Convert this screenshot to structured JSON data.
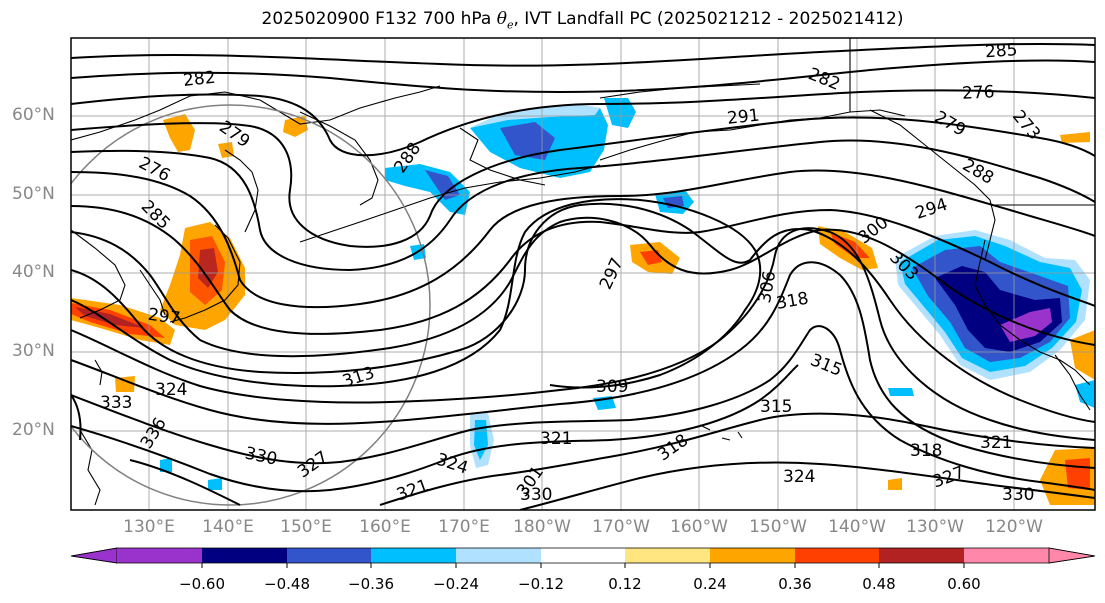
{
  "title": {
    "prefix": "2025020900 F132 700 hPa ",
    "theta_symbol": "θ",
    "theta_sub": "e",
    "suffix": ", IVT Landfall PC (2025021212 - 2025021412)"
  },
  "axes": {
    "lat_labels": [
      "60°N",
      "50°N",
      "40°N",
      "30°N",
      "20°N"
    ],
    "lon_labels": [
      "130°E",
      "140°E",
      "150°E",
      "160°E",
      "170°E",
      "180°W",
      "170°W",
      "160°W",
      "150°W",
      "140°W",
      "130°W",
      "120°W"
    ]
  },
  "contour_labels": [
    "282",
    "279",
    "276",
    "285",
    "288",
    "285",
    "282",
    "291",
    "276",
    "279",
    "273",
    "288",
    "294",
    "300",
    "303",
    "297",
    "306",
    "318",
    "315",
    "309",
    "315",
    "333",
    "324",
    "336",
    "330",
    "327",
    "324",
    "321",
    "321",
    "318",
    "321",
    "318",
    "327",
    "324",
    "330",
    "301",
    "330",
    "297",
    "313"
  ],
  "colorbar": {
    "colors": [
      "#9933cc",
      "#000080",
      "#3355cc",
      "#00bfff",
      "#b0e2ff",
      "#ffffff",
      "#ffe680",
      "#ffa500",
      "#ff4000",
      "#b22222",
      "#ff88aa"
    ],
    "tick_labels": [
      "−0.60",
      "−0.48",
      "−0.36",
      "−0.24",
      "−0.12",
      "0.12",
      "0.24",
      "0.36",
      "0.48",
      "0.60"
    ]
  },
  "colors": {
    "contour": "#000000",
    "grid": "#999999",
    "coast": "#000000",
    "circle": "#808080"
  }
}
